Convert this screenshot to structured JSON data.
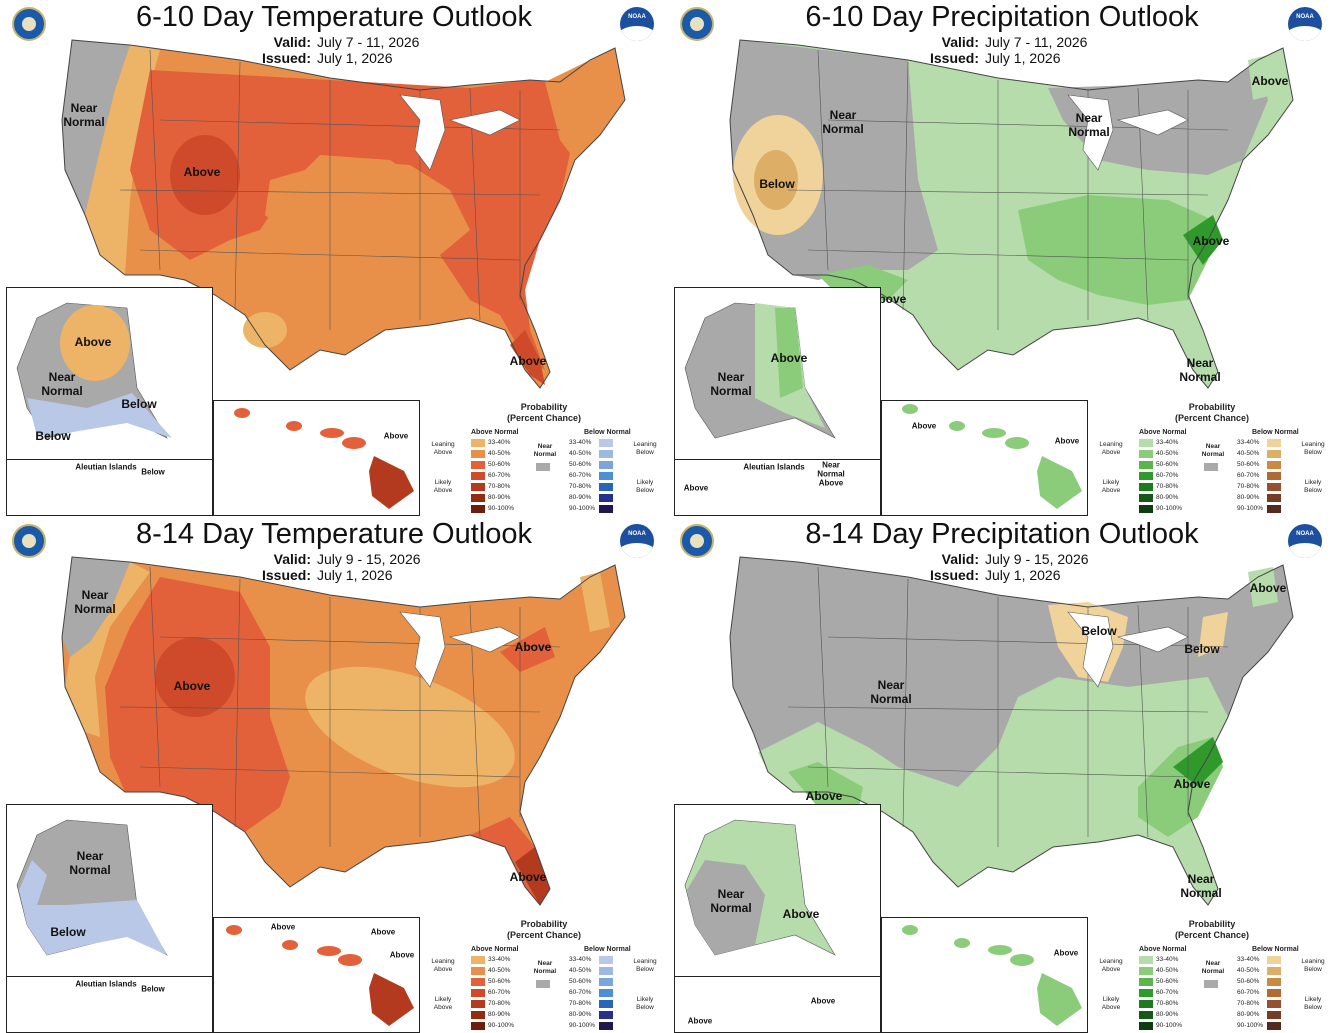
{
  "panels": [
    {
      "id": "p1",
      "title": "6-10 Day Temperature Outlook",
      "valid_label": "Valid:",
      "valid": "July 7 - 11, 2026",
      "issued_label": "Issued:",
      "issued": "July 1, 2026",
      "labels": [
        "Near\nNormal",
        "Above",
        "Above"
      ],
      "ak_labels": [
        "Above",
        "Near\nNormal",
        "Below",
        "Below"
      ],
      "aleutian_labels": [
        "Aleutian Islands",
        "Below"
      ],
      "hi_labels": [
        "Above"
      ]
    },
    {
      "id": "p2",
      "title": "6-10 Day Precipitation Outlook",
      "valid_label": "Valid:",
      "valid": "July 7 - 11, 2026",
      "issued_label": "Issued:",
      "issued": "July 1, 2026",
      "labels": [
        "Above",
        "Near\nNormal",
        "Near\nNormal",
        "Below",
        "Above",
        "Above",
        "Near\nNormal"
      ],
      "ak_labels": [
        "Above",
        "Near\nNormal"
      ],
      "aleutian_labels": [
        "Aleutian Islands",
        "Near\nNormal\nAbove",
        "Above"
      ],
      "hi_labels": [
        "Above",
        "Above"
      ]
    },
    {
      "id": "p3",
      "title": "8-14 Day Temperature Outlook",
      "valid_label": "Valid:",
      "valid": "July 9 - 15, 2026",
      "issued_label": "Issued:",
      "issued": "July 1, 2026",
      "labels": [
        "Near\nNormal",
        "Above",
        "Above",
        "Above"
      ],
      "ak_labels": [
        "Near\nNormal",
        "Below"
      ],
      "aleutian_labels": [
        "Aleutian Islands",
        "Below"
      ],
      "hi_labels": [
        "Above",
        "Above",
        "Above"
      ]
    },
    {
      "id": "p4",
      "title": "8-14 Day Precipitation Outlook",
      "valid_label": "Valid:",
      "valid": "July 9 - 15, 2026",
      "issued_label": "Issued:",
      "issued": "July 1, 2026",
      "labels": [
        "Above",
        "Below",
        "Below",
        "Near\nNormal",
        "Above",
        "Above",
        "Near\nNormal"
      ],
      "ak_labels": [
        "Near\nNormal",
        "Above"
      ],
      "aleutian_labels": [
        "Above",
        "Above"
      ],
      "hi_labels": [
        "Above"
      ]
    }
  ],
  "legend": {
    "title": "Probability\n(Percent Chance)",
    "above_header": "Above Normal",
    "below_header": "Below Normal",
    "near": "Near\nNormal",
    "ranges": [
      "33-40%",
      "40-50%",
      "50-60%",
      "60-70%",
      "70-80%",
      "80-90%",
      "90-100%"
    ],
    "leaning_above": "Leaning\nAbove",
    "likely_above": "Likely\nAbove",
    "leaning_below": "Leaning\nBelow",
    "likely_below": "Likely\nBelow",
    "seal_text": "NOAA",
    "temp_above_colors": [
      "#edb468",
      "#e8904a",
      "#e2603a",
      "#cf4a2a",
      "#b33a1e",
      "#942c14",
      "#6e1d0c"
    ],
    "temp_below_colors": [
      "#b8c8e6",
      "#9db9e2",
      "#7aa6dd",
      "#4e8fd4",
      "#2a66b8",
      "#26308a",
      "#221650"
    ],
    "precip_above_colors": [
      "#b6dcab",
      "#8bcc7b",
      "#5bb54c",
      "#2f9a2b",
      "#1f7a1f",
      "#15581a",
      "#0c3d10"
    ],
    "precip_below_colors": [
      "#f0d39a",
      "#ddae66",
      "#c98a44",
      "#b06a36",
      "#945030",
      "#753c27",
      "#55291d"
    ],
    "gray": "#a9a9a9"
  }
}
